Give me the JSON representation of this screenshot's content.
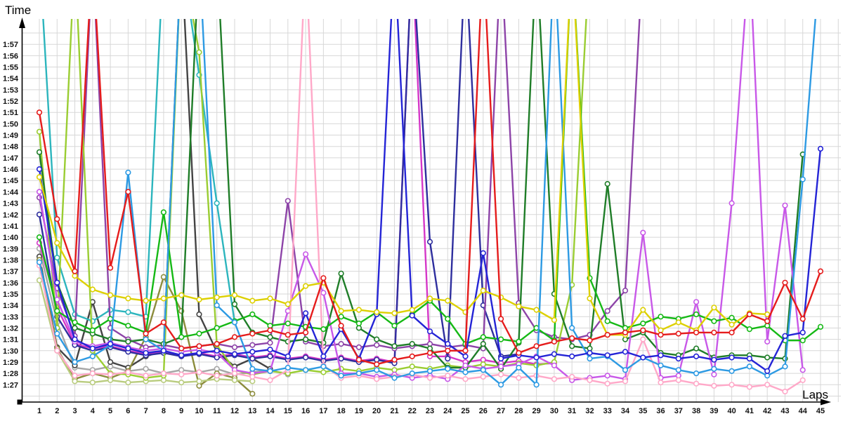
{
  "labels": {
    "y_title": "Time",
    "x_title": "Laps"
  },
  "chart_data": {
    "type": "line",
    "title": "",
    "xlabel": "Laps",
    "ylabel": "Time",
    "x_ticks": [
      "1",
      "2",
      "3",
      "4",
      "5",
      "6",
      "7",
      "8",
      "9",
      "10",
      "11",
      "12",
      "13",
      "14",
      "15",
      "16",
      "17",
      "18",
      "19",
      "20",
      "21",
      "22",
      "23",
      "24",
      "25",
      "26",
      "27",
      "28",
      "29",
      "30",
      "31",
      "32",
      "33",
      "34",
      "35",
      "36",
      "37",
      "38",
      "39",
      "40",
      "41",
      "42",
      "43",
      "44",
      "45"
    ],
    "y_ticks": [
      "1:57",
      "1:56",
      "1:55",
      "1:54",
      "1:53",
      "1:52",
      "1:51",
      "1:50",
      "1:49",
      "1:48",
      "1:47",
      "1:46",
      "1:45",
      "1:44",
      "1:43",
      "1:42",
      "1:41",
      "1:40",
      "1:39",
      "1:38",
      "1:37",
      "1:36",
      "1:35",
      "1:34",
      "1:33",
      "1:32",
      "1:31",
      "1:30",
      "1:29",
      "1:28",
      "1:27"
    ],
    "y_axis": {
      "top_tick_seconds": 117,
      "bottom_tick_seconds": 87,
      "unit": "m:ss",
      "values_are": "lap time in seconds"
    },
    "x_axis": {
      "min": 1,
      "max": 45
    },
    "grid": true,
    "legend": "none",
    "offscale_value": 125,
    "offscale_meaning": "lap time above visible scale (pit stop / incident), line runs off the top of the plot",
    "marker": {
      "shape": "circle",
      "fill": "#ffffff"
    },
    "series": [
      {
        "name": "gray",
        "color": "#a6a6a6",
        "values": [
          99,
          92.5,
          88.5,
          88.3,
          88.6,
          88.2,
          88.4,
          88,
          88.3,
          88.1,
          88.4,
          87.9,
          88.1,
          88.3,
          87.9
        ]
      },
      {
        "name": "dark-gray",
        "color": "#434343",
        "values": [
          98.3,
          90.3,
          88.7,
          94.3,
          89,
          88.5,
          89.5,
          90,
          125,
          93.2,
          89.9,
          88.6,
          89.3,
          88.4
        ]
      },
      {
        "name": "olive",
        "color": "#8c8c3c",
        "values": [
          98,
          90.2,
          87.5,
          88,
          87.6,
          88.2,
          91.2,
          96.5,
          93.5,
          86.9,
          88,
          87.6,
          86.2
        ]
      },
      {
        "name": "pale-green",
        "color": "#b9cc7e",
        "values": [
          96.2,
          90,
          87.3,
          87.2,
          87.4,
          87.2,
          87.3,
          87.4,
          87.2,
          87.3,
          87.5,
          87.4,
          87.3
        ]
      },
      {
        "name": "magenta",
        "color": "#d537c8",
        "values": [
          99.5,
          93.8,
          90.6,
          90.2,
          90.4,
          90,
          89.7,
          89.9,
          89.6,
          89.8,
          89.5,
          89.7,
          89.4,
          89.6,
          89.3,
          89.5,
          89.2,
          89.4,
          89.1,
          89.3,
          89,
          125,
          89.5,
          89.5,
          89,
          89.2,
          88.9,
          89.1,
          88.8,
          88.9
        ]
      },
      {
        "name": "teal",
        "color": "#2cb5bd",
        "values": [
          125,
          98.2,
          93.2,
          92.6,
          93.6,
          93.4,
          93,
          125,
          125,
          114.3,
          103,
          92.5
        ]
      },
      {
        "name": "navy",
        "color": "#2e2e9e",
        "values": [
          102,
          93,
          90.5,
          90,
          90.3,
          89.9,
          89.6,
          89.8,
          89.5,
          89.7,
          89.4,
          89.6,
          89.3,
          89.5,
          89.2,
          89.4,
          89.1,
          89.3,
          89,
          89.2,
          88.9,
          125,
          99.6,
          89.3,
          125,
          94,
          89.5,
          89.7
        ]
      },
      {
        "name": "purple",
        "color": "#8d44a8",
        "values": [
          103.5,
          95.5,
          91.3,
          125,
          92,
          91,
          90.3,
          90.5,
          90.2,
          90.4,
          90.6,
          90.3,
          90.5,
          90.7,
          103.2,
          90.8,
          90.4,
          90.6,
          90.3,
          90.5,
          90.2,
          90.4,
          90.6,
          90.3,
          90.5,
          90.2,
          125,
          94.2,
          91.8,
          91.2,
          91,
          91.4,
          93.5,
          95.3,
          125
        ]
      },
      {
        "name": "chartreuse",
        "color": "#9acd32",
        "values": [
          109.3,
          92,
          125,
          90,
          88,
          87.9,
          87.6,
          87.8,
          125,
          116.3,
          90.5,
          88.3,
          87.9,
          88.2,
          88,
          88.3,
          88.1,
          88.4,
          88.2,
          88.5,
          88.3,
          88.6,
          88.4,
          88.7,
          88.5,
          88.8,
          88.6,
          88.9,
          88.7,
          89,
          95.8,
          125
        ]
      },
      {
        "name": "dark-green",
        "color": "#1f7d28",
        "values": [
          107.5,
          96,
          92,
          91.5,
          91,
          90.8,
          91,
          90.6,
          91.2,
          125,
          125,
          94.1,
          91.6,
          91.2,
          90.8,
          91,
          90.7,
          96.8,
          92,
          91,
          90.4,
          90.6,
          90.2,
          88.5,
          88.5,
          90.6,
          88.4,
          90.7,
          125,
          95,
          90.4,
          90.2,
          104.7,
          91,
          91.6,
          89.8,
          89.6,
          90.2,
          89.4,
          89.6,
          89.6,
          89.4,
          89.3,
          107.3
        ]
      },
      {
        "name": "violet",
        "color": "#c858e8",
        "values": [
          104,
          94.5,
          90.8,
          90.4,
          90.7,
          90.3,
          90,
          90.2,
          89.9,
          90.1,
          89.8,
          88.3,
          88,
          88.2,
          93.5,
          98.5,
          95.1,
          88,
          88,
          87.7,
          87.9,
          87.6,
          87.8,
          87.5,
          88.7,
          88.4,
          88.6,
          88.8,
          89.5,
          88.7,
          87.4,
          87.6,
          87.8,
          87.5,
          100.4,
          87.6,
          87.8,
          94.3,
          87.9,
          103,
          125,
          90.8,
          102.8,
          88.3
        ]
      },
      {
        "name": "pink",
        "color": "#ffa8c8",
        "values": [
          97.5,
          90,
          87.8,
          88,
          87.9,
          88.1,
          87.8,
          88,
          87.9,
          88.1,
          87.8,
          88,
          87.7,
          87.4,
          88.3,
          125,
          88.7,
          87.6,
          87.8,
          87.5,
          87.7,
          87.9,
          87.6,
          87.8,
          87.5,
          87.7,
          87.9,
          87.6,
          87.8,
          87.5,
          87.7,
          87.4,
          87.1,
          87.3,
          91,
          87.2,
          87.4,
          87.1,
          86.9,
          87,
          86.8,
          87,
          86.4,
          87.4
        ]
      },
      {
        "name": "green",
        "color": "#15b915",
        "values": [
          100,
          93.5,
          92.5,
          91.8,
          92.8,
          92.2,
          91.6,
          102.2,
          91.2,
          91.5,
          92,
          92.6,
          93.2,
          92.2,
          92.4,
          92.1,
          91.9,
          93,
          92.4,
          93.4,
          92.2,
          93.2,
          94.4,
          92.8,
          90.6,
          91.2,
          91,
          90.8,
          92,
          90.9,
          125,
          96.4,
          92.6,
          92,
          92.4,
          93,
          92.8,
          93.2,
          92.6,
          92.9,
          91.9,
          92.2,
          90.9,
          90.9,
          92.1
        ]
      },
      {
        "name": "sky-blue",
        "color": "#2d9ae3",
        "values": [
          97.8,
          91.5,
          89,
          89.5,
          90.5,
          105.7,
          91,
          90,
          125,
          125,
          94,
          92.5,
          88.4,
          88.2,
          88.5,
          88.3,
          88.6,
          87.8,
          88,
          88.3,
          87.6,
          88,
          88.2,
          88.4,
          88.1,
          88.3,
          87,
          88.5,
          87,
          125,
          92,
          89.3,
          89.5,
          88.3,
          89.4,
          88.7,
          88.3,
          88,
          88.4,
          88.2,
          88.6,
          87.8,
          88.6,
          105.1,
          125
        ]
      },
      {
        "name": "blue",
        "color": "#2424d6",
        "values": [
          106,
          96,
          91,
          90.2,
          90.6,
          90.2,
          89.8,
          90,
          89.6,
          89.8,
          90,
          89.7,
          89.9,
          90.1,
          89.5,
          93.3,
          89.5,
          91.9,
          89.3,
          93.2,
          125,
          93.1,
          91.7,
          90.6,
          89.5,
          98.6,
          89.3,
          89.6,
          89.4,
          89.7,
          89.5,
          89.8,
          89.6,
          89.9,
          89.4,
          89.6,
          89.3,
          89.5,
          89.2,
          89.4,
          89.3,
          88.2,
          91.3,
          91.6,
          107.8
        ]
      },
      {
        "name": "yellow",
        "color": "#ddd000",
        "values": [
          105.3,
          99.5,
          96.6,
          95.4,
          94.9,
          94.6,
          94.4,
          94.6,
          94.9,
          94.5,
          94.7,
          94.9,
          94.4,
          94.6,
          94.1,
          95.7,
          96,
          93.5,
          93.6,
          93.4,
          93.3,
          93.6,
          94.6,
          94.4,
          93.4,
          95.3,
          94.7,
          93.9,
          93.6,
          92.7,
          125,
          94.6,
          91.4,
          91.4,
          93.6,
          91.8,
          92.5,
          91.8,
          93.8,
          92.3,
          93.3,
          93.2
        ]
      },
      {
        "name": "red",
        "color": "#e51c1c",
        "values": [
          111,
          101.6,
          97,
          125,
          97.3,
          104,
          91.5,
          92.5,
          90.2,
          90.4,
          90.6,
          91.2,
          91.5,
          91.8,
          91.4,
          91.6,
          96.4,
          92.2,
          89.2,
          88.8,
          89.2,
          89.5,
          89.8,
          90,
          90,
          125,
          92.8,
          89.8,
          90.4,
          90.8,
          91.1,
          90.9,
          91.4,
          91.6,
          91.8,
          91.4,
          91.5,
          91.6,
          91.6,
          91.6,
          93.2,
          92.6,
          96,
          92.8,
          97
        ]
      }
    ]
  },
  "layout_colors": {
    "background": "#ffffff",
    "grid": "#d7d7d7",
    "axis": "#000000",
    "tick_text": "#111111"
  }
}
